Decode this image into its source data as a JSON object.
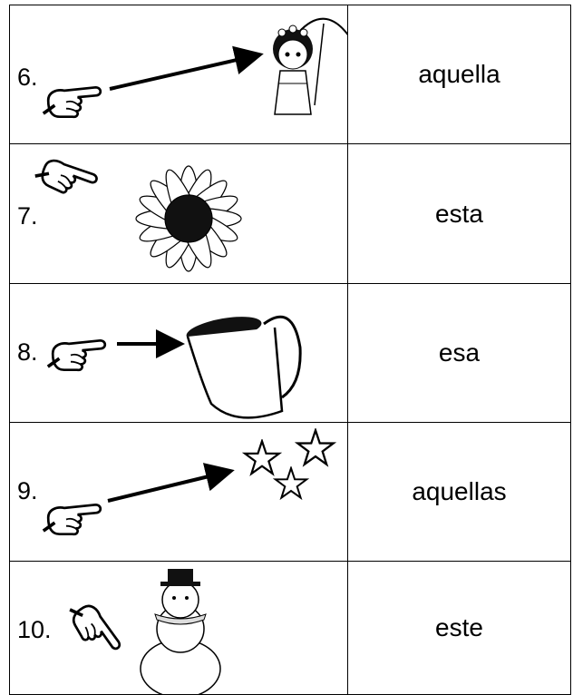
{
  "rows": [
    {
      "number": "6.",
      "word": "aquella"
    },
    {
      "number": "7.",
      "word": "esta"
    },
    {
      "number": "8.",
      "word": "esa"
    },
    {
      "number": "9.",
      "word": "aquellas"
    },
    {
      "number": "10.",
      "word": "este"
    }
  ]
}
